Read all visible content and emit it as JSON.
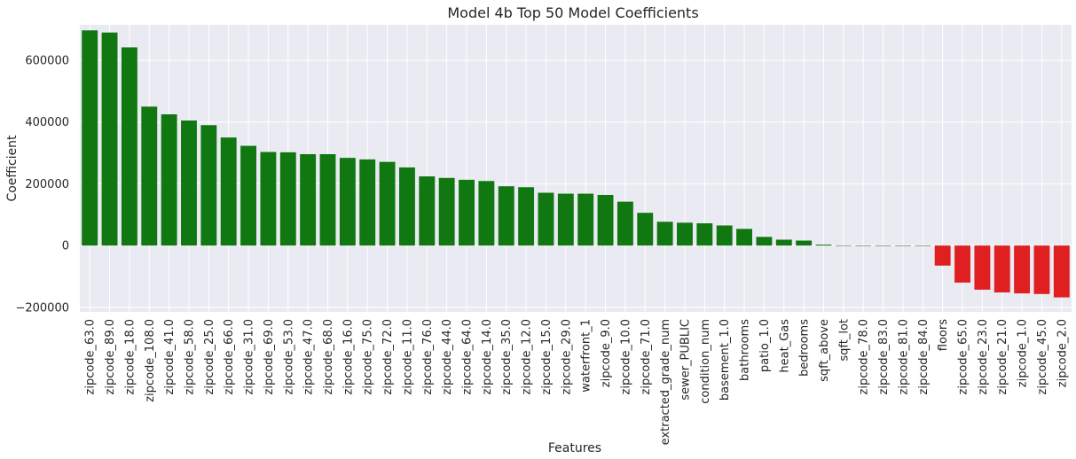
{
  "chart_data": {
    "type": "bar",
    "title": "Model 4b Top 50 Model Coefficients",
    "xlabel": "Features",
    "ylabel": "Coefficient",
    "ylim": [
      -215000,
      715000
    ],
    "yticks": [
      -200000,
      0,
      200000,
      400000,
      600000
    ],
    "ytick_labels": [
      "−200000",
      "0",
      "200000",
      "400000",
      "600000"
    ],
    "grid": true,
    "background_color": "#eaeaf2",
    "positive_color": "#117711",
    "negative_color": "#e02020",
    "categories": [
      "zipcode_63.0",
      "zipcode_89.0",
      "zipcode_18.0",
      "zipcode_108.0",
      "zipcode_41.0",
      "zipcode_58.0",
      "zipcode_25.0",
      "zipcode_66.0",
      "zipcode_31.0",
      "zipcode_69.0",
      "zipcode_53.0",
      "zipcode_47.0",
      "zipcode_68.0",
      "zipcode_16.0",
      "zipcode_75.0",
      "zipcode_72.0",
      "zipcode_11.0",
      "zipcode_76.0",
      "zipcode_44.0",
      "zipcode_64.0",
      "zipcode_14.0",
      "zipcode_35.0",
      "zipcode_12.0",
      "zipcode_15.0",
      "zipcode_29.0",
      "waterfront_1",
      "zipcode_9.0",
      "zipcode_10.0",
      "zipcode_71.0",
      "extracted_grade_num",
      "sewer_PUBLIC",
      "condition_num",
      "basement_1.0",
      "bathrooms",
      "patio_1.0",
      "heat_Gas",
      "bedrooms",
      "sqft_above",
      "sqft_lot",
      "zipcode_78.0",
      "zipcode_83.0",
      "zipcode_81.0",
      "zipcode_84.0",
      "floors",
      "zipcode_65.0",
      "zipcode_23.0",
      "zipcode_21.0",
      "zipcode_1.0",
      "zipcode_45.0",
      "zipcode_2.0"
    ],
    "values": [
      697000,
      690000,
      642000,
      450000,
      425000,
      405000,
      390000,
      350000,
      323000,
      303000,
      302000,
      296000,
      296000,
      284000,
      279000,
      271000,
      253000,
      224000,
      219000,
      213000,
      209000,
      192000,
      189000,
      171000,
      168000,
      168000,
      164000,
      142000,
      106000,
      77000,
      74000,
      72000,
      65000,
      54000,
      28000,
      19000,
      16000,
      3000,
      500,
      300,
      200,
      200,
      100,
      -65000,
      -120000,
      -143000,
      -152000,
      -155000,
      -157000,
      -168000
    ]
  }
}
